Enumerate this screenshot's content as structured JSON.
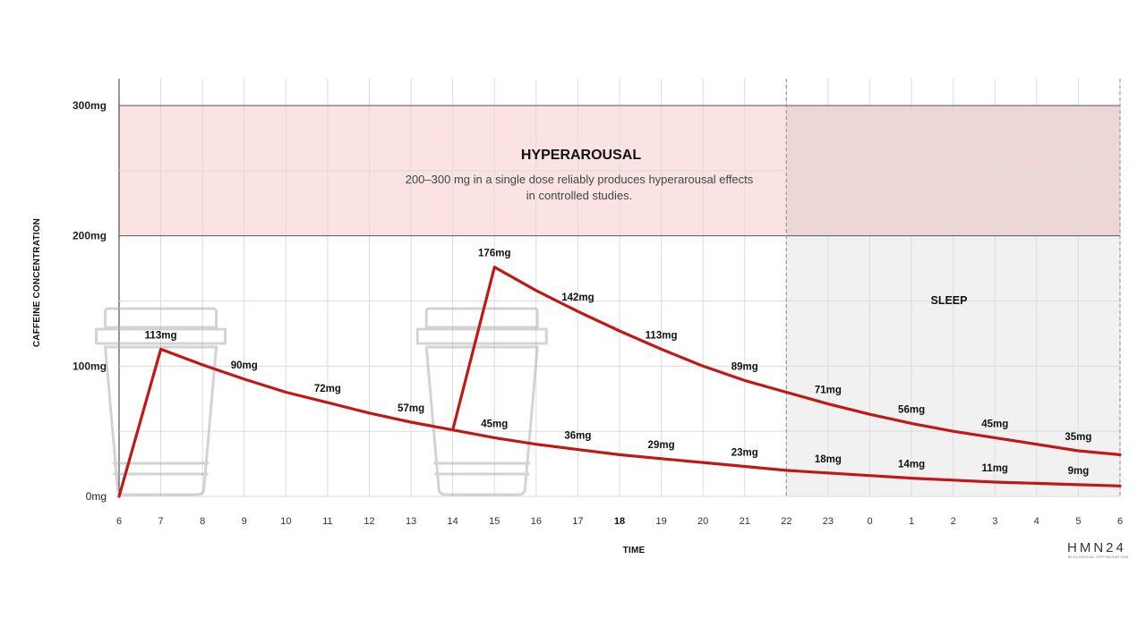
{
  "chart_data": {
    "type": "line",
    "xlabel": "TIME",
    "ylabel": "CAFFEINE CONCENTRATION",
    "x_ticks": [
      "6",
      "7",
      "8",
      "9",
      "10",
      "11",
      "12",
      "13",
      "14",
      "15",
      "16",
      "17",
      "18",
      "19",
      "20",
      "21",
      "22",
      "23",
      "0",
      "1",
      "2",
      "3",
      "4",
      "5",
      "6"
    ],
    "bold_x_tick": "18",
    "y_ticks": [
      {
        "value": 0,
        "label": "0mg"
      },
      {
        "value": 100,
        "label": "100mg"
      },
      {
        "value": 200,
        "label": "200mg"
      },
      {
        "value": 300,
        "label": "300mg"
      }
    ],
    "ylim": [
      0,
      300
    ],
    "grid": true,
    "zones": {
      "hyperarousal": {
        "range": [
          200,
          300
        ],
        "title": "HYPERAROUSAL",
        "description_lines": [
          "200–300 mg in a single dose reliably produces hyperarousal effects",
          "in controlled studies."
        ],
        "color": "#fbe3e3"
      },
      "sleep": {
        "x_range": [
          22,
          30
        ],
        "title": "SLEEP",
        "color": "#f1f1f1"
      }
    },
    "series": [
      {
        "color": "#c01818",
        "points": [
          [
            6,
            0
          ],
          [
            7,
            113
          ],
          [
            8,
            101
          ],
          [
            9,
            90
          ],
          [
            10,
            80
          ],
          [
            11,
            72
          ],
          [
            12,
            64
          ],
          [
            13,
            57
          ],
          [
            14,
            51
          ],
          [
            15,
            45
          ],
          [
            16,
            40
          ],
          [
            17,
            36
          ],
          [
            18,
            32
          ],
          [
            19,
            29
          ],
          [
            20,
            26
          ],
          [
            21,
            23
          ],
          [
            22,
            20
          ],
          [
            23,
            18
          ],
          [
            24,
            16
          ],
          [
            25,
            14
          ],
          [
            26,
            12.5
          ],
          [
            27,
            11
          ],
          [
            28,
            10
          ],
          [
            29,
            9
          ],
          [
            30,
            8
          ]
        ],
        "labels": [
          {
            "x": 7,
            "text": "113mg"
          },
          {
            "x": 9,
            "text": "90mg"
          },
          {
            "x": 11,
            "text": "72mg"
          },
          {
            "x": 13,
            "text": "57mg"
          },
          {
            "x": 15,
            "text": "45mg"
          },
          {
            "x": 17,
            "text": "36mg"
          },
          {
            "x": 19,
            "text": "29mg"
          },
          {
            "x": 21,
            "text": "23mg"
          },
          {
            "x": 23,
            "text": "18mg"
          },
          {
            "x": 25,
            "text": "14mg"
          },
          {
            "x": 27,
            "text": "11mg"
          },
          {
            "x": 29,
            "text": "9mg"
          }
        ]
      },
      {
        "color": "#c01818",
        "points": [
          [
            14,
            51
          ],
          [
            15,
            176
          ],
          [
            16,
            158
          ],
          [
            17,
            142
          ],
          [
            18,
            127
          ],
          [
            19,
            113
          ],
          [
            20,
            100
          ],
          [
            21,
            89
          ],
          [
            22,
            80
          ],
          [
            23,
            71
          ],
          [
            24,
            63
          ],
          [
            25,
            56
          ],
          [
            26,
            50
          ],
          [
            27,
            45
          ],
          [
            28,
            40
          ],
          [
            29,
            35
          ],
          [
            30,
            32
          ]
        ],
        "labels": [
          {
            "x": 15,
            "text": "176mg"
          },
          {
            "x": 17,
            "text": "142mg"
          },
          {
            "x": 19,
            "text": "113mg"
          },
          {
            "x": 21,
            "text": "89mg"
          },
          {
            "x": 23,
            "text": "71mg"
          },
          {
            "x": 25,
            "text": "56mg"
          },
          {
            "x": 27,
            "text": "45mg"
          },
          {
            "x": 29,
            "text": "35mg"
          }
        ]
      }
    ],
    "cup_icons_at_x": [
      7,
      14.7
    ]
  },
  "brand": {
    "name": "HMN24",
    "tagline": "BIOLOGICAL OPTIMISATION"
  }
}
